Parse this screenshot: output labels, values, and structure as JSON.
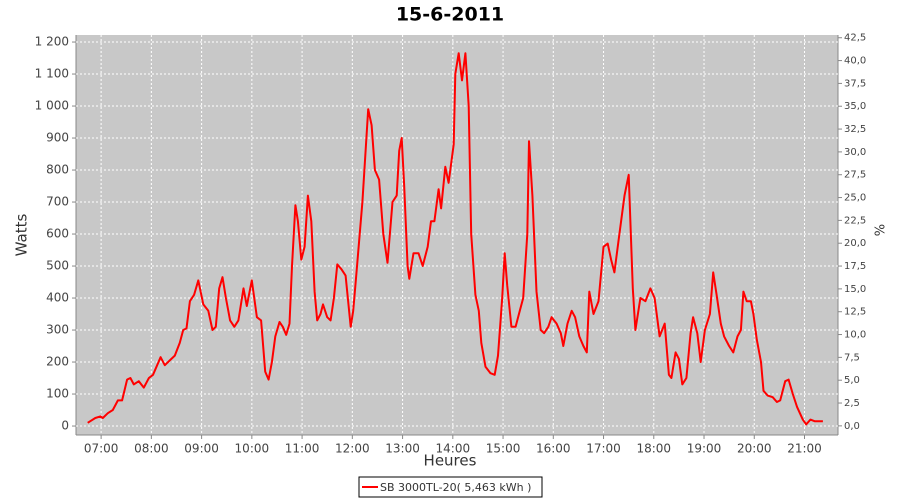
{
  "chart_data": {
    "type": "line",
    "title": "15-6-2011",
    "x_label": "Heures",
    "y_label": "Watts",
    "y2_label": "%",
    "x": [
      "06:44",
      "06:53",
      "06:59",
      "07:02",
      "07:08",
      "07:14",
      "07:20",
      "07:25",
      "07:31",
      "07:35",
      "07:39",
      "07:45",
      "07:51",
      "07:57",
      "08:02",
      "08:11",
      "08:16",
      "08:22",
      "08:28",
      "08:34",
      "08:38",
      "08:42",
      "08:46",
      "08:51",
      "08:56",
      "09:02",
      "09:08",
      "09:13",
      "09:17",
      "09:21",
      "09:25",
      "09:29",
      "09:34",
      "09:39",
      "09:44",
      "09:50",
      "09:54",
      "10:00",
      "10:06",
      "10:11",
      "10:16",
      "10:20",
      "10:24",
      "10:28",
      "10:33",
      "10:37",
      "10:41",
      "10:45",
      "10:48",
      "10:52",
      "10:55",
      "10:59",
      "11:03",
      "11:07",
      "11:11",
      "11:15",
      "11:18",
      "11:22",
      "11:25",
      "11:30",
      "11:34",
      "11:38",
      "11:42",
      "11:47",
      "11:52",
      "11:58",
      "12:01",
      "12:05",
      "12:12",
      "12:19",
      "12:23",
      "12:27",
      "12:32",
      "12:37",
      "12:42",
      "12:48",
      "12:53",
      "12:56",
      "12:59",
      "13:02",
      "13:06",
      "13:08",
      "13:13",
      "13:19",
      "13:24",
      "13:30",
      "13:34",
      "13:38",
      "13:43",
      "13:46",
      "13:51",
      "13:55",
      "14:01",
      "14:03",
      "14:07",
      "14:11",
      "14:15",
      "14:19",
      "14:22",
      "14:27",
      "14:31",
      "14:34",
      "14:39",
      "14:45",
      "14:50",
      "14:54",
      "14:59",
      "15:02",
      "15:05",
      "15:10",
      "15:15",
      "15:20",
      "15:24",
      "15:29",
      "15:31",
      "15:35",
      "15:40",
      "15:45",
      "15:49",
      "15:54",
      "15:58",
      "16:04",
      "16:09",
      "16:12",
      "16:17",
      "16:22",
      "16:26",
      "16:31",
      "16:36",
      "16:40",
      "16:43",
      "16:48",
      "16:54",
      "17:00",
      "17:05",
      "17:09",
      "17:13",
      "17:19",
      "17:25",
      "17:30",
      "17:35",
      "17:38",
      "17:44",
      "17:50",
      "17:56",
      "18:01",
      "18:07",
      "18:13",
      "18:18",
      "18:21",
      "18:26",
      "18:30",
      "18:34",
      "18:39",
      "18:44",
      "18:47",
      "18:52",
      "18:56",
      "19:01",
      "19:07",
      "19:11",
      "19:15",
      "19:20",
      "19:24",
      "19:30",
      "19:35",
      "19:40",
      "19:44",
      "19:47",
      "19:51",
      "19:56",
      "19:59",
      "20:03",
      "20:08",
      "20:11",
      "20:16",
      "20:22",
      "20:27",
      "20:31",
      "20:37",
      "20:41",
      "20:46",
      "20:51",
      "20:58",
      "21:02",
      "21:07",
      "21:12",
      "21:22"
    ],
    "series": [
      {
        "name": "SB 3000TL-20( 5,463 kWh )",
        "color": "#ff0000",
        "values": [
          10,
          25,
          30,
          25,
          40,
          50,
          80,
          80,
          145,
          150,
          130,
          140,
          120,
          150,
          160,
          215,
          190,
          205,
          220,
          260,
          300,
          305,
          390,
          410,
          455,
          380,
          360,
          300,
          310,
          430,
          465,
          400,
          330,
          310,
          330,
          430,
          375,
          455,
          340,
          330,
          170,
          145,
          200,
          280,
          325,
          310,
          285,
          320,
          500,
          690,
          640,
          520,
          560,
          720,
          640,
          420,
          330,
          350,
          380,
          340,
          330,
          400,
          505,
          490,
          470,
          310,
          360,
          480,
          700,
          990,
          940,
          800,
          770,
          600,
          510,
          700,
          720,
          860,
          900,
          750,
          500,
          460,
          540,
          540,
          500,
          560,
          640,
          640,
          740,
          680,
          810,
          760,
          880,
          1100,
          1165,
          1080,
          1165,
          1000,
          600,
          410,
          360,
          260,
          185,
          165,
          160,
          220,
          400,
          540,
          440,
          310,
          310,
          360,
          400,
          600,
          890,
          720,
          420,
          300,
          290,
          310,
          340,
          320,
          290,
          250,
          320,
          360,
          340,
          280,
          250,
          230,
          420,
          350,
          390,
          560,
          570,
          520,
          480,
          600,
          720,
          785,
          430,
          300,
          400,
          390,
          430,
          400,
          280,
          320,
          160,
          150,
          230,
          210,
          130,
          150,
          290,
          340,
          290,
          200,
          300,
          350,
          480,
          410,
          320,
          280,
          250,
          230,
          280,
          300,
          420,
          390,
          390,
          350,
          270,
          200,
          110,
          95,
          90,
          75,
          80,
          140,
          145,
          100,
          60,
          20,
          5,
          20,
          15,
          15
        ]
      }
    ],
    "xlim": [
      "06:30",
      "21:40"
    ],
    "xticks": [
      "07:00",
      "08:00",
      "09:00",
      "10:00",
      "11:00",
      "12:00",
      "13:00",
      "14:00",
      "15:00",
      "16:00",
      "17:00",
      "18:00",
      "19:00",
      "20:00",
      "21:00"
    ],
    "ylim": [
      -28,
      1222
    ],
    "yticks": [
      0,
      100,
      200,
      300,
      400,
      500,
      600,
      700,
      800,
      900,
      {
        "value": 1000,
        "label": "1 000"
      },
      {
        "value": 1100,
        "label": "1 100"
      },
      {
        "value": 1200,
        "label": "1 200"
      }
    ],
    "y2lim": [
      -1,
      42.8
    ],
    "y2ticks": [
      {
        "value": 0,
        "label": "0,0"
      },
      {
        "value": 2.5,
        "label": "2,5"
      },
      {
        "value": 5,
        "label": "5,0"
      },
      {
        "value": 7.5,
        "label": "7,5"
      },
      {
        "value": 10,
        "label": "10,0"
      },
      {
        "value": 12.5,
        "label": "12,5"
      },
      {
        "value": 15,
        "label": "15,0"
      },
      {
        "value": 17.5,
        "label": "17,5"
      },
      {
        "value": 20,
        "label": "20,0"
      },
      {
        "value": 22.5,
        "label": "22,5"
      },
      {
        "value": 25,
        "label": "25,0"
      },
      {
        "value": 27.5,
        "label": "27,5"
      },
      {
        "value": 30,
        "label": "30,0"
      },
      {
        "value": 32.5,
        "label": "32,5"
      },
      {
        "value": 35,
        "label": "35,0"
      },
      {
        "value": 37.5,
        "label": "37,5"
      },
      {
        "value": 40,
        "label": "40,0"
      },
      {
        "value": 42.5,
        "label": "42,5"
      }
    ],
    "grid": true,
    "legend": "bottom"
  }
}
